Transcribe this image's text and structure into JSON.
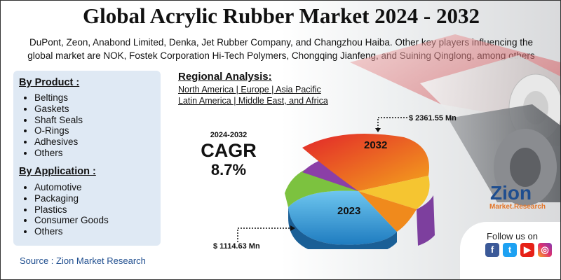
{
  "title": "Global Acrylic Rubber Market 2024 - 2032",
  "subtitle_line1": "DuPont, Zeon, Anabond Limited, Denka, Jet Rubber Company, and Changzhou Haiba. Other key players influencing the",
  "subtitle_line2": "global market are NOK, Fostek Corporation Hi-Tech Polymers, Chongqing Jianfeng, and Suining Qinglong, among others",
  "by_product": {
    "title": "By Product :",
    "items": [
      "Beltings",
      "Gaskets",
      "Shaft Seals",
      "O-Rings",
      "Adhesives",
      "Others"
    ]
  },
  "by_application": {
    "title": "By Application :",
    "items": [
      "Automotive",
      "Packaging",
      "Plastics",
      "Consumer Goods",
      "Others"
    ]
  },
  "regional": {
    "title": "Regional Analysis:",
    "line1": "North America | Europe | Asia Pacific",
    "line2": "Latin America | Middle East, and Africa"
  },
  "cagr": {
    "years": "2024-2032",
    "label": "CAGR",
    "value": "8.7%"
  },
  "chart": {
    "label_2032": "2032",
    "label_2023": "2023",
    "value_2032": "$ 2361.55 Mn",
    "value_2023": "$ 1114.63 Mn"
  },
  "source": "Source : Zion Market Research",
  "logo": {
    "brand": "Zion",
    "sub": "Market.Research"
  },
  "follow": "Follow us on",
  "social_icons": [
    "facebook-icon",
    "twitter-icon",
    "youtube-icon",
    "instagram-icon"
  ],
  "colors": {
    "accent_blue": "#1f4e8f",
    "panel": "#dfe9f4"
  }
}
